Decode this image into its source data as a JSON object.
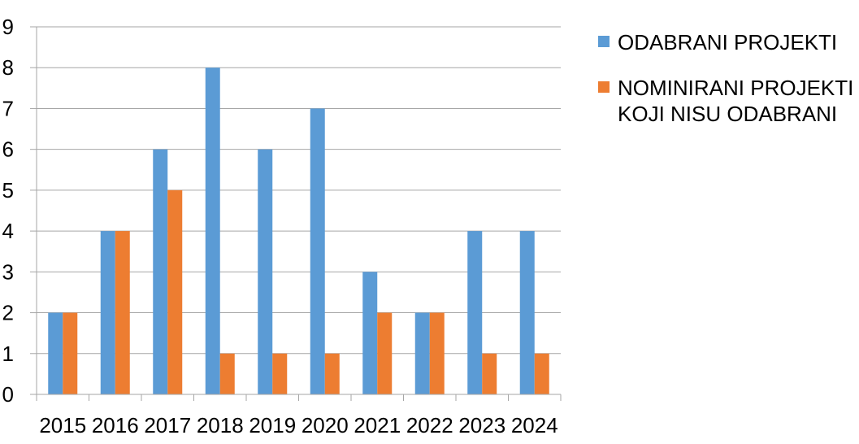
{
  "chart_data": {
    "type": "bar",
    "categories": [
      "2015",
      "2016",
      "2017",
      "2018",
      "2019",
      "2020",
      "2021",
      "2022",
      "2023",
      "2024"
    ],
    "series": [
      {
        "name": "ODABRANI PROJEKTI",
        "color": "#5B9BD5",
        "values": [
          2,
          4,
          6,
          8,
          6,
          7,
          3,
          2,
          4,
          4
        ]
      },
      {
        "name": "NOMINIRANI PROJEKTI\nKOJI NISU ODABRANI",
        "color": "#ED7D31",
        "values": [
          2,
          4,
          5,
          1,
          1,
          1,
          2,
          2,
          1,
          1
        ]
      }
    ],
    "yticks": [
      "0",
      "1",
      "2",
      "3",
      "4",
      "5",
      "6",
      "7",
      "8",
      "9"
    ],
    "ylim": [
      0,
      9
    ],
    "grid": true,
    "legend_position": "right",
    "title": "",
    "xlabel": "",
    "ylabel": ""
  }
}
